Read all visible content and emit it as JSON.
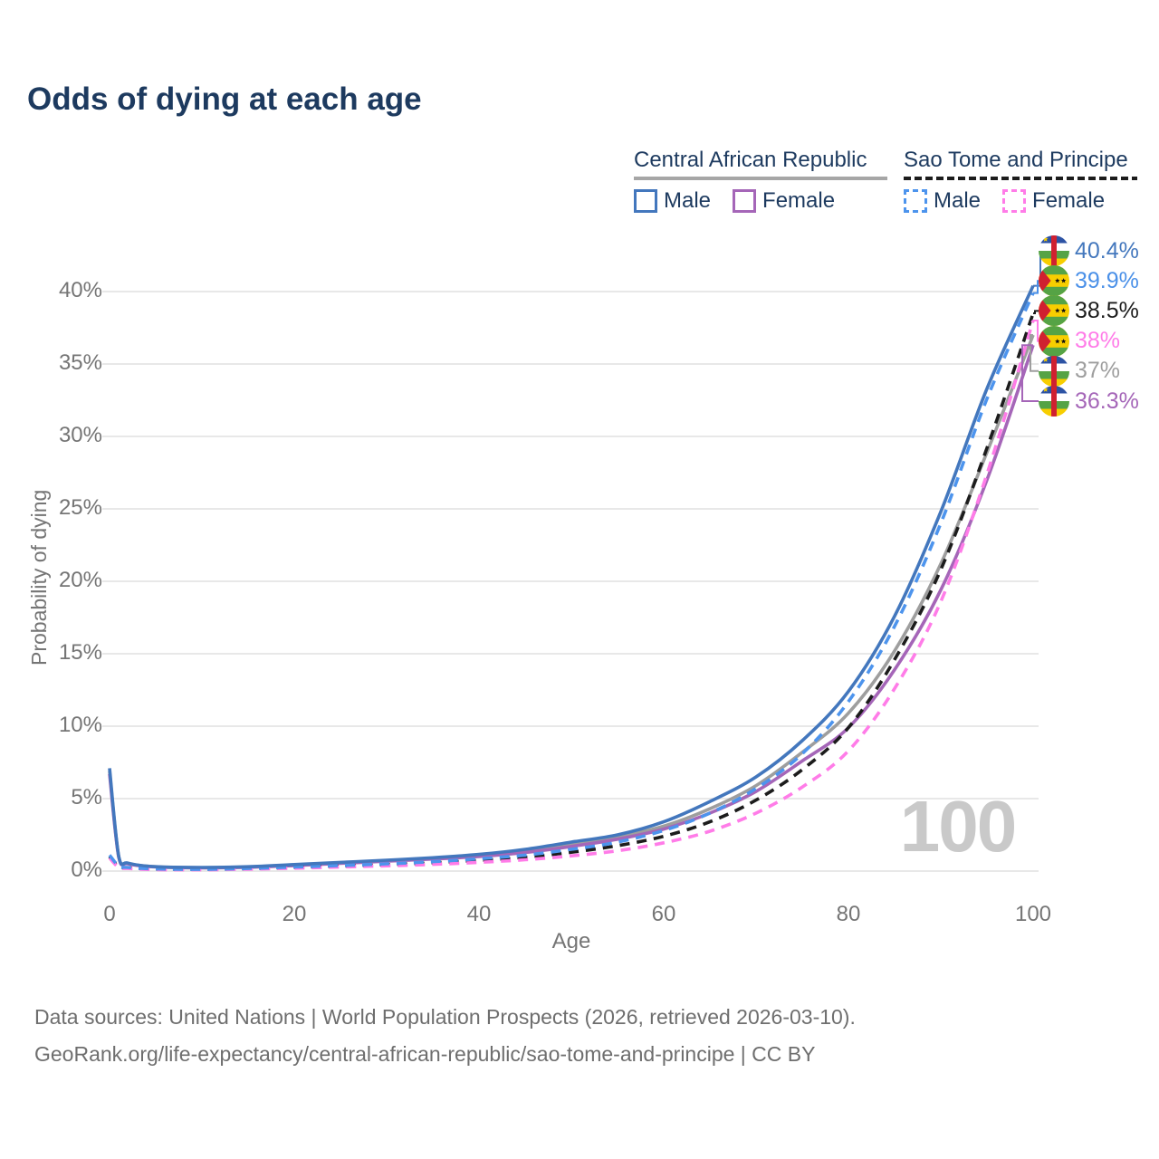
{
  "title": "Odds of dying at each age",
  "legend": {
    "groups": [
      {
        "country": "Central African Republic",
        "line_style": "solid",
        "line_color": "#a6a6a6",
        "items": [
          {
            "label": "Male",
            "color": "#4377bd"
          },
          {
            "label": "Female",
            "color": "#a566b8"
          }
        ]
      },
      {
        "country": "Sao Tome and Principe",
        "line_style": "dashed",
        "line_color": "#1c1c1c",
        "items": [
          {
            "label": "Male",
            "color": "#4d94ed"
          },
          {
            "label": "Female",
            "color": "#ff7ce8"
          }
        ]
      }
    ]
  },
  "axes": {
    "x_label": "Age",
    "y_label": "Probability of dying",
    "x_ticks": [
      "0",
      "20",
      "40",
      "60",
      "80",
      "100"
    ],
    "y_ticks": [
      "0%",
      "5%",
      "10%",
      "15%",
      "20%",
      "25%",
      "30%",
      "35%",
      "40%"
    ]
  },
  "end_labels": [
    {
      "value": "40.4%",
      "flag": "Central African Republic",
      "color": "#4377bd"
    },
    {
      "value": "39.9%",
      "flag": "Sao Tome and Principe",
      "color": "#4a90e8"
    },
    {
      "value": "38.5%",
      "flag": "Sao Tome and Principe",
      "color": "#1c1c1c"
    },
    {
      "value": "38%",
      "flag": "Sao Tome and Principe",
      "color": "#ff7ce8"
    },
    {
      "value": "37%",
      "flag": "Central African Republic",
      "color": "#9e9e9e"
    },
    {
      "value": "36.3%",
      "flag": "Central African Republic",
      "color": "#a566b8"
    }
  ],
  "watermark": "100",
  "footer": {
    "line1": "Data sources: United Nations | World Population Prospects (2026, retrieved 2026-03-10).",
    "line2": "GeoRank.org/life-expectancy/central-african-republic/sao-tome-and-principe | CC BY"
  },
  "chart_data": {
    "type": "line",
    "title": "Odds of dying at each age",
    "xlabel": "Age",
    "ylabel": "Probability of dying",
    "xlim": [
      0,
      100
    ],
    "ylim": [
      0,
      43
    ],
    "x_tick_values": [
      0,
      20,
      40,
      60,
      80,
      100
    ],
    "y_tick_values": [
      0,
      5,
      10,
      15,
      20,
      25,
      30,
      35,
      40
    ],
    "grid": "horizontal",
    "legend_position": "top-right",
    "ages": [
      0,
      1,
      2,
      5,
      10,
      15,
      20,
      25,
      30,
      35,
      40,
      45,
      50,
      55,
      60,
      65,
      70,
      75,
      80,
      85,
      90,
      95,
      100
    ],
    "series": [
      {
        "name": "Central African Republic — Male",
        "country": "Central African Republic",
        "sex": "Male",
        "style": "solid",
        "color": "#4377bd",
        "end_label": "40.4%",
        "values": [
          7.1,
          1.0,
          0.55,
          0.3,
          0.25,
          0.3,
          0.45,
          0.6,
          0.75,
          0.92,
          1.15,
          1.5,
          2.0,
          2.5,
          3.4,
          4.8,
          6.5,
          9.0,
          12.4,
          17.6,
          24.8,
          33.3,
          40.4
        ]
      },
      {
        "name": "Sao Tome and Principe — Male",
        "country": "Sao Tome and Principe",
        "sex": "Male",
        "style": "dashed",
        "color": "#4d94ed",
        "end_label": "39.9%",
        "values": [
          1.1,
          0.35,
          0.25,
          0.15,
          0.12,
          0.18,
          0.28,
          0.38,
          0.5,
          0.65,
          0.85,
          1.1,
          1.5,
          2.0,
          2.8,
          4.0,
          5.7,
          8.1,
          11.7,
          16.9,
          24.0,
          32.6,
          39.9
        ]
      },
      {
        "name": "Sao Tome and Principe — Both sexes",
        "country": "Sao Tome and Principe",
        "sex": "Both",
        "style": "dashed",
        "color": "#1c1c1c",
        "end_label": "38.5%",
        "values": [
          1.0,
          0.3,
          0.22,
          0.13,
          0.11,
          0.16,
          0.25,
          0.34,
          0.44,
          0.57,
          0.74,
          0.95,
          1.3,
          1.75,
          2.4,
          3.4,
          4.9,
          7.0,
          9.9,
          14.6,
          20.8,
          29.2,
          38.5
        ]
      },
      {
        "name": "Sao Tome and Principe — Female",
        "country": "Sao Tome and Principe",
        "sex": "Female",
        "style": "dashed",
        "color": "#ff7ce8",
        "end_label": "38%",
        "values": [
          0.9,
          0.25,
          0.18,
          0.1,
          0.09,
          0.13,
          0.2,
          0.28,
          0.36,
          0.46,
          0.6,
          0.78,
          1.05,
          1.4,
          1.95,
          2.75,
          4.0,
          5.8,
          8.3,
          12.6,
          18.6,
          27.4,
          38.0
        ]
      },
      {
        "name": "Central African Republic — Both sexes",
        "country": "Central African Republic",
        "sex": "Both",
        "style": "solid",
        "color": "#9e9e9e",
        "end_label": "37%",
        "values": [
          6.9,
          0.97,
          0.52,
          0.3,
          0.23,
          0.28,
          0.42,
          0.57,
          0.72,
          0.88,
          1.07,
          1.38,
          1.85,
          2.35,
          3.1,
          4.3,
          5.9,
          8.2,
          10.9,
          15.2,
          21.2,
          28.9,
          37.0
        ]
      },
      {
        "name": "Central African Republic — Female",
        "country": "Central African Republic",
        "sex": "Female",
        "style": "solid",
        "color": "#a566b8",
        "end_label": "36.3%",
        "values": [
          6.7,
          0.93,
          0.5,
          0.28,
          0.22,
          0.26,
          0.38,
          0.53,
          0.68,
          0.83,
          1.0,
          1.28,
          1.7,
          2.2,
          2.9,
          4.0,
          5.5,
          7.6,
          9.9,
          13.9,
          19.4,
          27.0,
          36.3
        ]
      }
    ]
  }
}
